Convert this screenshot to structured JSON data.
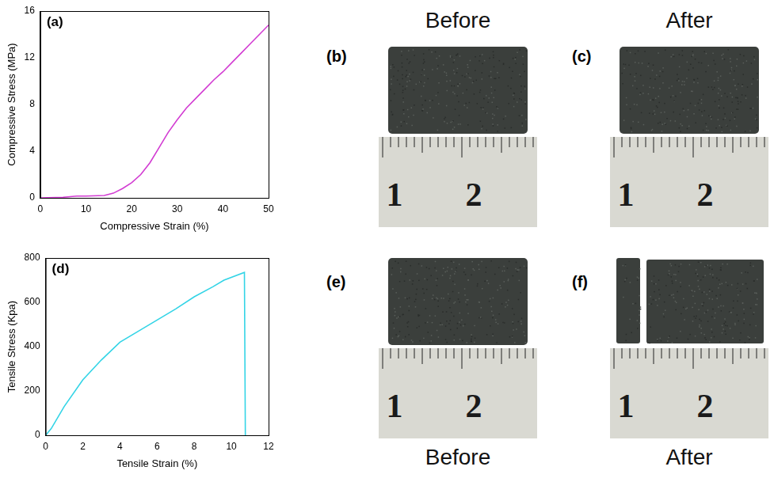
{
  "chart_data": [
    {
      "type": "line",
      "panel_label": "(a)",
      "x_label": "Compressive Strain (%)",
      "y_label": "Compressive Stress (MPa)",
      "xlim": [
        0,
        50
      ],
      "xticks": [
        0,
        10,
        20,
        30,
        40,
        50
      ],
      "ylim": [
        0,
        16
      ],
      "yticks": [
        0,
        4,
        8,
        12,
        16
      ],
      "grid": false,
      "series": [
        {
          "color": "#d23cd2",
          "x": [
            0,
            5,
            8,
            10,
            14,
            16,
            18,
            20,
            22,
            24,
            26,
            28,
            30,
            32,
            34,
            36,
            38,
            40,
            42,
            44,
            46,
            48,
            50
          ],
          "values": [
            0,
            0.05,
            0.15,
            0.15,
            0.2,
            0.4,
            0.8,
            1.3,
            2.0,
            3.0,
            4.3,
            5.6,
            6.7,
            7.7,
            8.5,
            9.3,
            10.1,
            10.8,
            11.6,
            12.4,
            13.2,
            14.0,
            14.8
          ]
        }
      ]
    },
    {
      "type": "line",
      "panel_label": "(d)",
      "x_label": "Tensile Strain (%)",
      "y_label": "Tensile Stress (Kpa)",
      "xlim": [
        0,
        12
      ],
      "xticks": [
        0,
        2,
        4,
        6,
        8,
        10,
        12
      ],
      "ylim": [
        0,
        800
      ],
      "yticks": [
        0,
        200,
        400,
        600,
        800
      ],
      "grid": false,
      "series": [
        {
          "color": "#33d4e6",
          "x": [
            0,
            0.3,
            1,
            2,
            3,
            4,
            5,
            6,
            7,
            8,
            9,
            9.6,
            10.7,
            10.75
          ],
          "values": [
            0,
            30,
            130,
            250,
            340,
            420,
            470,
            520,
            570,
            625,
            670,
            700,
            735,
            0
          ]
        }
      ]
    }
  ],
  "photos": [
    {
      "panel_label": "(b)",
      "caption": "Before",
      "ruler_labels": [
        "1",
        "2"
      ],
      "broken": false
    },
    {
      "panel_label": "(c)",
      "caption": "After",
      "ruler_labels": [
        "1",
        "2"
      ],
      "broken": false
    },
    {
      "panel_label": "(e)",
      "caption": "Before",
      "ruler_labels": [
        "1",
        "2"
      ],
      "broken": false
    },
    {
      "panel_label": "(f)",
      "caption": "After",
      "ruler_labels": [
        "1",
        "2"
      ],
      "broken": true
    }
  ]
}
